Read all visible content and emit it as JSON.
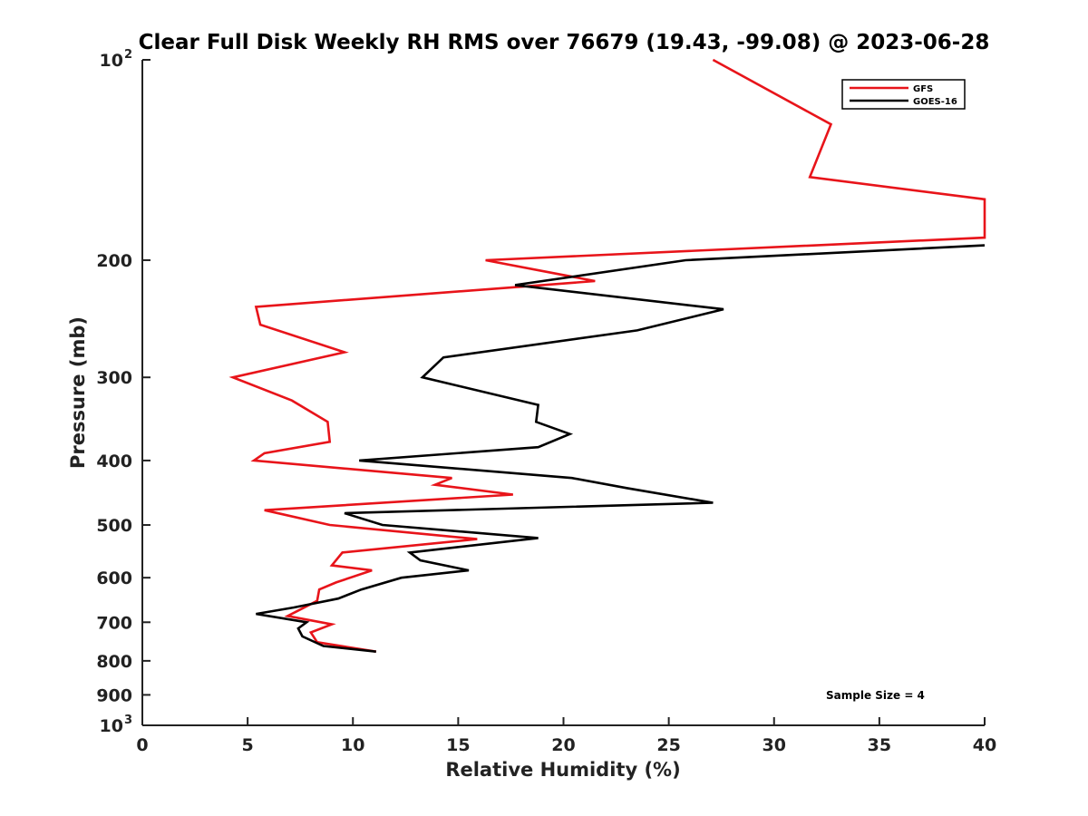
{
  "chart_data": {
    "type": "line",
    "title": "Clear Full Disk Weekly RH RMS over 76679 (19.43, -99.08) @ 2023-06-28",
    "xlabel": "Relative Humidity (%)",
    "ylabel": "Pressure (mb)",
    "xlim": [
      0,
      40
    ],
    "ylim": [
      100,
      1000
    ],
    "y_scale": "log",
    "y_reversed": true,
    "grid": false,
    "legend_position": "top-right",
    "x_ticks": [
      "0",
      "5",
      "10",
      "15",
      "20",
      "25",
      "30",
      "35",
      "40"
    ],
    "y_ticks": [
      {
        "value": 100,
        "base": "10",
        "exp": "2"
      },
      {
        "value": 200,
        "label": "200"
      },
      {
        "value": 300,
        "label": "300"
      },
      {
        "value": 400,
        "label": "400"
      },
      {
        "value": 500,
        "label": "500"
      },
      {
        "value": 600,
        "label": "600"
      },
      {
        "value": 700,
        "label": "700"
      },
      {
        "value": 800,
        "label": "800"
      },
      {
        "value": 900,
        "label": "900"
      },
      {
        "value": 1000,
        "base": "10",
        "exp": "3"
      }
    ],
    "annotation": "Sample Size = 4",
    "series": [
      {
        "name": "GFS",
        "color": "#e8141a",
        "points": [
          [
            27.1,
            100
          ],
          [
            32.7,
            125
          ],
          [
            31.7,
            150
          ],
          [
            40.0,
            162
          ],
          [
            40.0,
            185
          ],
          [
            16.3,
            200
          ],
          [
            21.5,
            215
          ],
          [
            5.4,
            235
          ],
          [
            5.6,
            250
          ],
          [
            9.6,
            275
          ],
          [
            4.3,
            300
          ],
          [
            7.1,
            325
          ],
          [
            8.8,
            350
          ],
          [
            8.9,
            375
          ],
          [
            5.8,
            390
          ],
          [
            5.3,
            400
          ],
          [
            14.7,
            425
          ],
          [
            13.9,
            435
          ],
          [
            17.6,
            450
          ],
          [
            5.8,
            475
          ],
          [
            8.9,
            500
          ],
          [
            15.9,
            525
          ],
          [
            9.5,
            550
          ],
          [
            9.0,
            575
          ],
          [
            10.9,
            585
          ],
          [
            9.2,
            610
          ],
          [
            8.4,
            625
          ],
          [
            8.3,
            650
          ],
          [
            7.3,
            675
          ],
          [
            6.9,
            685
          ],
          [
            9.0,
            705
          ],
          [
            8.0,
            725
          ],
          [
            8.3,
            750
          ],
          [
            11.1,
            775
          ]
        ]
      },
      {
        "name": "GOES-16",
        "color": "#000000",
        "points": [
          [
            40.0,
            190
          ],
          [
            25.8,
            200
          ],
          [
            17.7,
            218
          ],
          [
            27.6,
            237
          ],
          [
            23.5,
            255
          ],
          [
            14.3,
            280
          ],
          [
            13.3,
            300
          ],
          [
            18.8,
            330
          ],
          [
            18.7,
            350
          ],
          [
            20.3,
            365
          ],
          [
            18.8,
            382
          ],
          [
            10.3,
            400
          ],
          [
            20.4,
            425
          ],
          [
            23.0,
            440
          ],
          [
            27.1,
            463
          ],
          [
            9.6,
            480
          ],
          [
            11.4,
            500
          ],
          [
            18.8,
            523
          ],
          [
            12.7,
            550
          ],
          [
            13.2,
            565
          ],
          [
            15.5,
            585
          ],
          [
            12.3,
            600
          ],
          [
            10.4,
            625
          ],
          [
            9.3,
            645
          ],
          [
            7.2,
            665
          ],
          [
            5.4,
            680
          ],
          [
            7.8,
            700
          ],
          [
            7.4,
            715
          ],
          [
            7.6,
            735
          ],
          [
            8.6,
            760
          ],
          [
            11.1,
            775
          ]
        ]
      }
    ]
  }
}
